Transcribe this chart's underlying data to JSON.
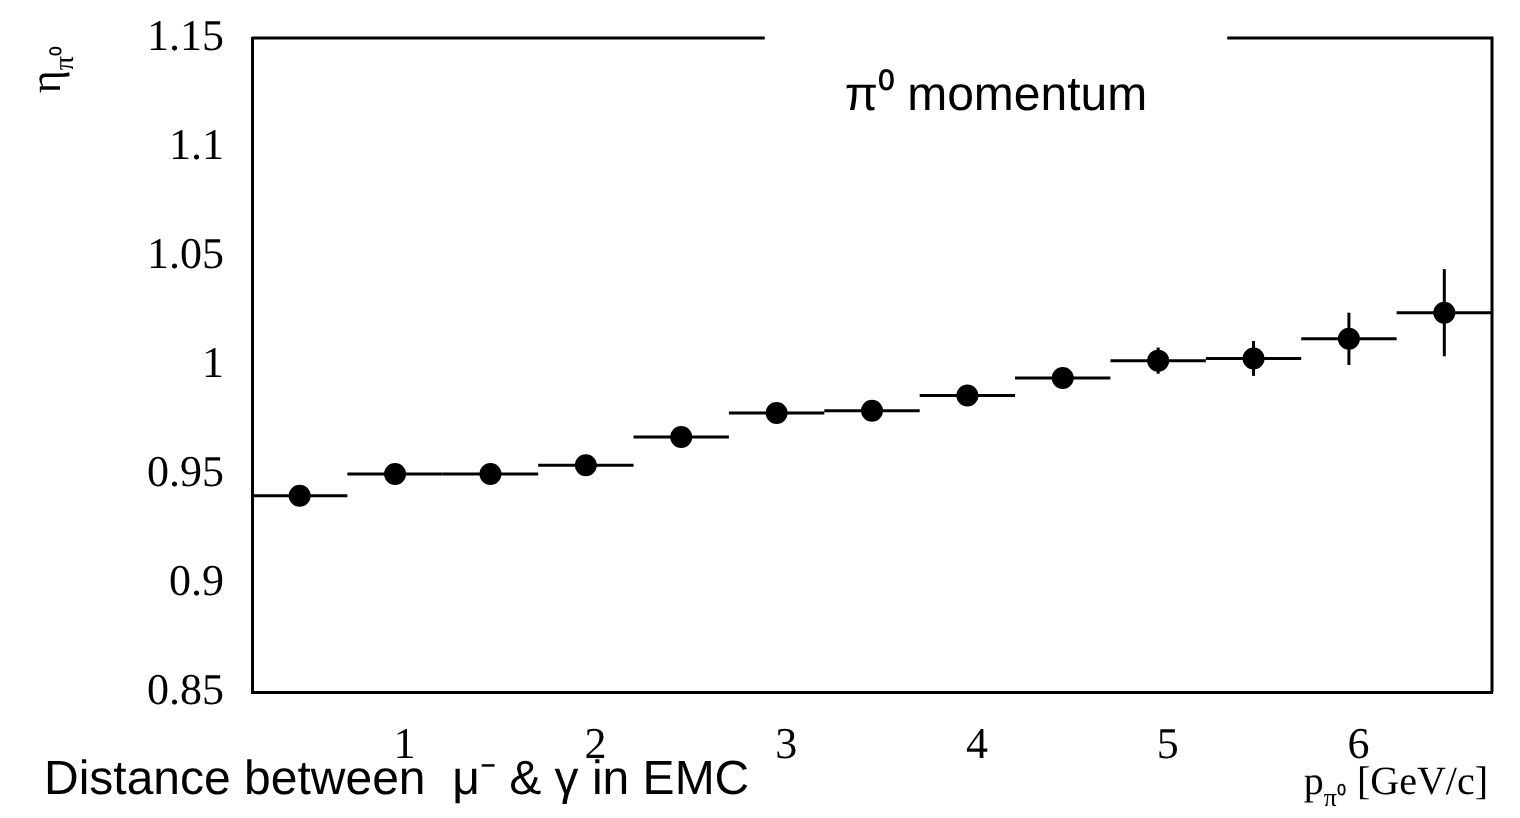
{
  "chart_data": {
    "type": "scatter",
    "title": "π⁰ momentum",
    "xlabel": "p$_{π⁰}$ [GeV/c]",
    "ylabel": "η$_{π⁰}$",
    "annotations": [
      "Distance between  μ⁻ & γ in EMC"
    ],
    "x": [
      0.45,
      0.95,
      1.45,
      1.95,
      2.45,
      2.95,
      3.45,
      3.95,
      4.45,
      4.95,
      5.45,
      5.95,
      6.45
    ],
    "series": [
      {
        "color": "#000000",
        "values": [
          0.94,
          0.95,
          0.95,
          0.954,
          0.967,
          0.978,
          0.979,
          0.986,
          0.994,
          1.002,
          1.003,
          1.012,
          1.024
        ],
        "errors": [
          null,
          null,
          null,
          null,
          null,
          null,
          null,
          null,
          0.004,
          0.006,
          0.008,
          0.012,
          0.02
        ],
        "xerrors": [
          0.25,
          0.25,
          0.25,
          0.25,
          0.25,
          0.25,
          0.25,
          0.25,
          0.25,
          0.25,
          0.25,
          0.25,
          0.25
        ]
      }
    ],
    "xlim": [
      0.2,
      6.7
    ],
    "xticks": [
      1,
      2,
      3,
      4,
      5,
      6
    ],
    "ylim": [
      0.85,
      1.15
    ],
    "yticks": [
      0.85,
      0.9,
      0.95,
      1,
      1.05,
      1.1,
      1.15
    ],
    "marker": "circle",
    "grid": false,
    "legend": false
  }
}
